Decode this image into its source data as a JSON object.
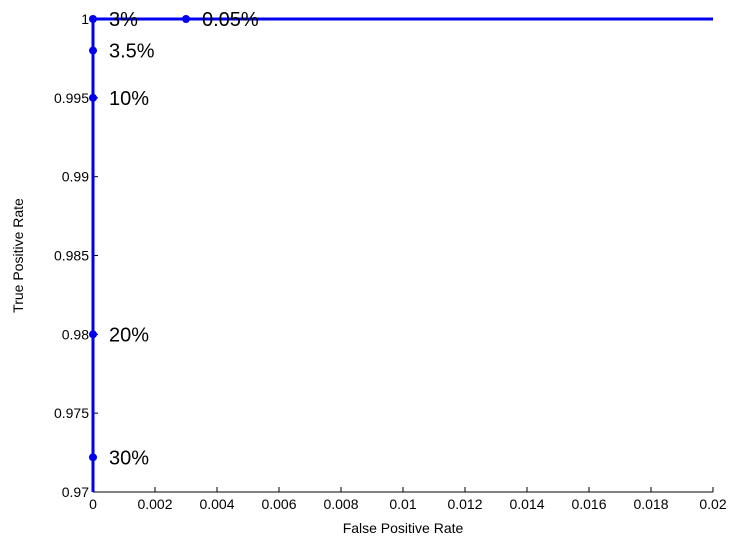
{
  "chart_data": {
    "type": "line",
    "xlabel": "False Positive Rate",
    "ylabel": "True Positive Rate",
    "xlim": [
      0,
      0.02
    ],
    "ylim": [
      0.97,
      1.0
    ],
    "grid": false,
    "x_ticks": [
      0,
      0.002,
      0.004,
      0.006,
      0.008,
      0.01,
      0.012,
      0.014,
      0.016,
      0.018,
      0.02
    ],
    "x_tick_labels": [
      "0",
      "0.002",
      "0.004",
      "0.006",
      "0.008",
      "0.01",
      "0.012",
      "0.014",
      "0.016",
      "0.018",
      "0.02"
    ],
    "y_ticks": [
      0.97,
      0.975,
      0.98,
      0.985,
      0.99,
      0.995,
      1.0
    ],
    "y_tick_labels": [
      "0.97",
      "0.975",
      "0.98",
      "0.985",
      "0.99",
      "0.995",
      "1"
    ],
    "series": [
      {
        "color": "#0000ee",
        "x": [
          0,
          0,
          0,
          0,
          0,
          0,
          0.003,
          0.02
        ],
        "y": [
          0.97,
          0.9722,
          0.98,
          0.995,
          0.998,
          1.0,
          1.0,
          1.0
        ]
      }
    ],
    "markers": [
      {
        "x": 0,
        "y": 1.0,
        "label": "3%"
      },
      {
        "x": 0.003,
        "y": 1.0,
        "label": "0.05%"
      },
      {
        "x": 0,
        "y": 0.998,
        "label": "3.5%"
      },
      {
        "x": 0,
        "y": 0.995,
        "label": "10%"
      },
      {
        "x": 0,
        "y": 0.98,
        "label": "20%"
      },
      {
        "x": 0,
        "y": 0.9722,
        "label": "30%"
      }
    ]
  }
}
